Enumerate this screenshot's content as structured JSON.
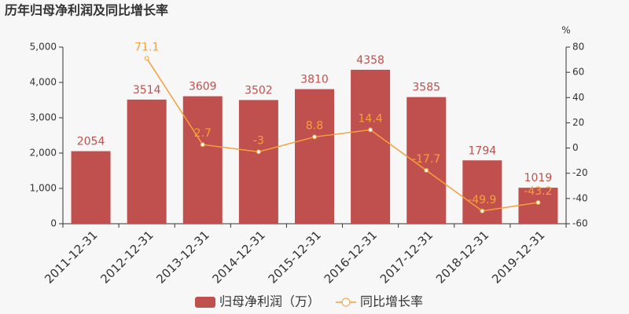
{
  "chart_data": {
    "type": "bar-line",
    "title": "历年归母净利润及同比增长率",
    "categories": [
      "2011-12-31",
      "2012-12-31",
      "2013-12-31",
      "2014-12-31",
      "2015-12-31",
      "2016-12-31",
      "2017-12-31",
      "2018-12-31",
      "2019-12-31"
    ],
    "series": [
      {
        "name": "归母净利润（万）",
        "type": "bar",
        "color": "#c0504d",
        "values": [
          2054,
          3514,
          3609,
          3502,
          3810,
          4358,
          3585,
          1794,
          1019
        ]
      },
      {
        "name": "同比增长率",
        "type": "line",
        "axis": "y2",
        "color": "#f5a03c",
        "values": [
          null,
          71.1,
          2.7,
          -3,
          8.8,
          14.4,
          -17.7,
          -49.9,
          -43.2
        ]
      }
    ],
    "ylim": [
      0,
      5000
    ],
    "yticks": [
      0,
      {
        "value": 1000,
        "label": "1,000"
      },
      {
        "value": 2000,
        "label": "2,000"
      },
      {
        "value": 3000,
        "label": "3,000"
      },
      {
        "value": 4000,
        "label": "4,000"
      },
      {
        "value": 5000,
        "label": "5,000"
      }
    ],
    "y2lim": [
      -60,
      80
    ],
    "y2ticks": [
      -60,
      -40,
      -20,
      0,
      20,
      40,
      60,
      80
    ],
    "y2label": "%",
    "grid": false
  }
}
